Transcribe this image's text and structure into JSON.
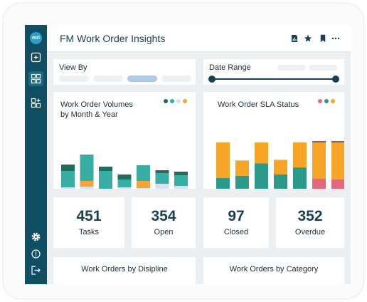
{
  "app": {
    "logo_text": "mri",
    "title": "FM Work Order Insights"
  },
  "sidebar": {
    "icons": [
      "sparkle-icon",
      "dashboard-grid-icon",
      "grid-add-icon",
      "gear-icon",
      "info-icon",
      "logout-icon"
    ]
  },
  "header": {
    "icons": [
      "report-icon",
      "star-icon",
      "bookmark-icon",
      "more-icon"
    ]
  },
  "filters": {
    "view_by_label": "View By",
    "date_range_label": "Date Range",
    "date_range_fill": 1.0
  },
  "colors": {
    "dark_green": "#1f6e5a",
    "teal": "#38ada4",
    "orange": "#f6a33a",
    "lavender": "#dbe0ee",
    "sla_teal": "#2c9a8b",
    "sla_red": "#e3687a",
    "sla_orange": "#f6a526",
    "sla_purple": "#6e5d8e"
  },
  "volume_chart": {
    "title_line1": "Work Order Volumes",
    "title_line2": "by Month & Year",
    "legend_colors": [
      "#1f6e5a",
      "#38ada4",
      "#dbe0ee",
      "#f6a33a"
    ]
  },
  "sla_chart": {
    "title": "Work Order SLA Status",
    "legend_colors": [
      "#e3687a",
      "#2c9a8b",
      "#f6a526"
    ]
  },
  "chart_data": [
    {
      "type": "bar",
      "stacked": true,
      "categories": [
        "",
        "",
        "",
        "",
        "",
        "",
        ""
      ],
      "series": [
        {
          "values": [
            14,
            15,
            12,
            14,
            13,
            19,
            16
          ]
        },
        {
          "values": [
            0,
            8,
            0,
            0,
            10,
            0,
            0
          ]
        },
        {
          "values": [
            23,
            37,
            25,
            11,
            22,
            15,
            15
          ]
        },
        {
          "values": [
            9,
            0,
            6,
            7,
            0,
            4,
            5
          ]
        }
      ],
      "ylim": [
        0,
        60
      ]
    },
    {
      "type": "bar",
      "stacked": true,
      "categories": [
        "",
        "",
        "",
        "",
        "",
        "",
        ""
      ],
      "series": [
        {
          "values": [
            10,
            11,
            10,
            10,
            10,
            26,
            25
          ]
        },
        {
          "values": [
            17,
            19,
            38,
            22,
            32,
            0,
            0
          ]
        },
        {
          "values": [
            51,
            22,
            30,
            21,
            36,
            52,
            53
          ]
        },
        {
          "values": [
            0,
            0,
            0,
            0,
            0,
            2,
            2
          ]
        }
      ],
      "ylim": [
        0,
        78
      ]
    }
  ],
  "stats": [
    {
      "value": "451",
      "label": "Tasks"
    },
    {
      "value": "354",
      "label": "Open"
    },
    {
      "value": "97",
      "label": "Closed"
    },
    {
      "value": "352",
      "label": "Overdue"
    }
  ],
  "bottom": {
    "discipline_title": "Work Orders by Disipline",
    "category_title": "Work Orders by Category"
  }
}
